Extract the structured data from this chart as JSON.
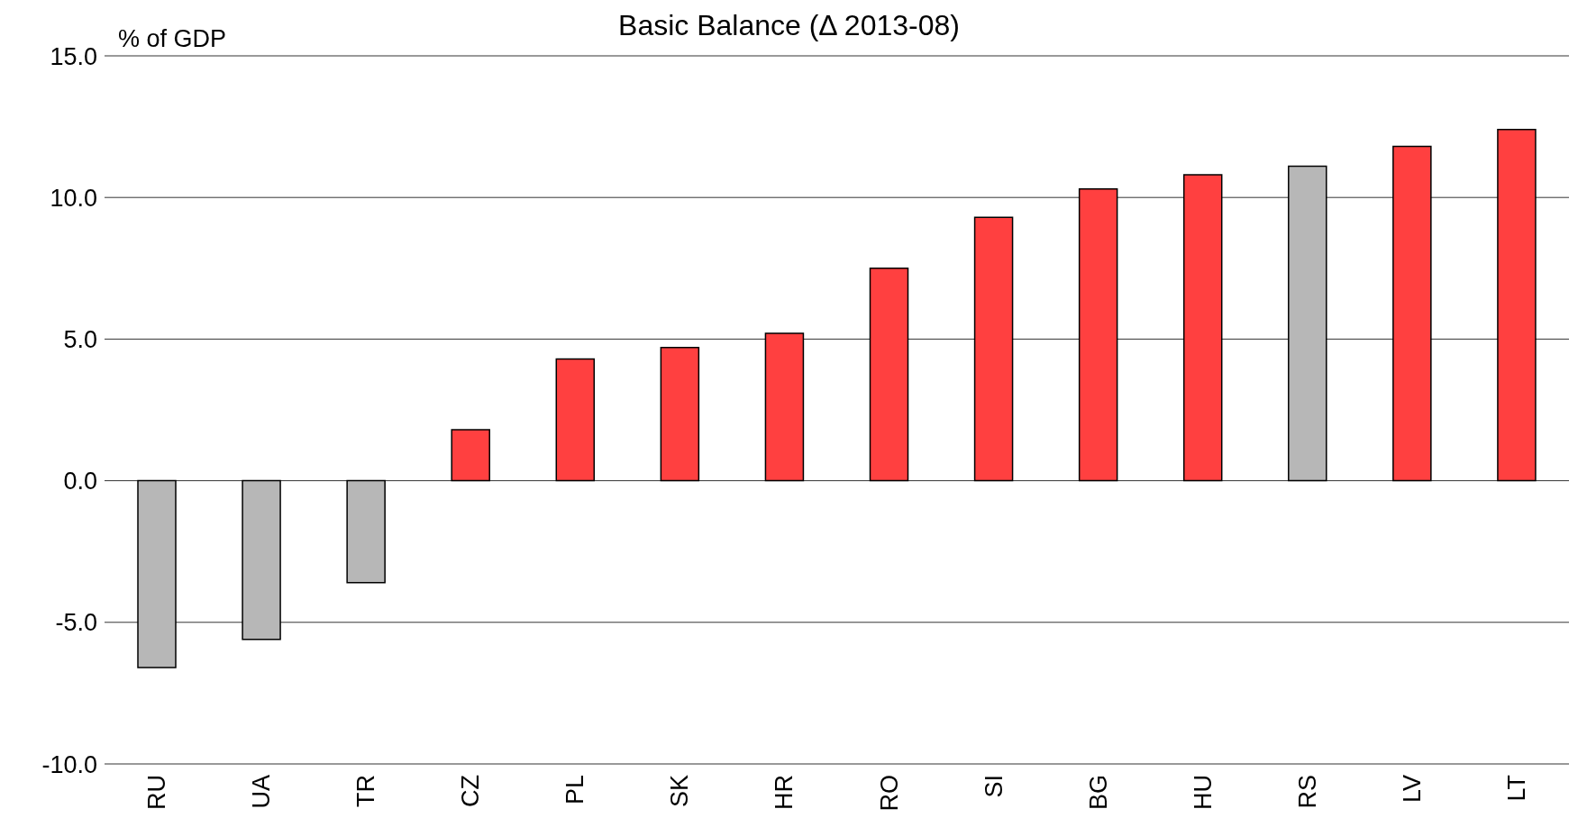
{
  "chart_data": {
    "type": "bar",
    "title": "Basic Balance (Δ 2013-08)",
    "ylabel": "% of GDP",
    "categories": [
      "RU",
      "UA",
      "TR",
      "CZ",
      "PL",
      "SK",
      "HR",
      "RO",
      "SI",
      "BG",
      "HU",
      "RS",
      "LV",
      "LT"
    ],
    "values": [
      -6.6,
      -5.6,
      -3.6,
      1.8,
      4.3,
      4.7,
      5.2,
      7.5,
      9.3,
      10.3,
      10.8,
      11.1,
      11.8,
      12.4
    ],
    "colors": [
      "#b7b7b7",
      "#b7b7b7",
      "#b7b7b7",
      "#ff4040",
      "#ff4040",
      "#ff4040",
      "#ff4040",
      "#ff4040",
      "#ff4040",
      "#ff4040",
      "#ff4040",
      "#b7b7b7",
      "#ff4040",
      "#ff4040"
    ],
    "ylim": [
      -10,
      15
    ],
    "yticks": [
      {
        "value": -10,
        "label": "-10.0"
      },
      {
        "value": -5,
        "label": "-5.0"
      },
      {
        "value": 0,
        "label": "0.0"
      },
      {
        "value": 5,
        "label": "5.0"
      },
      {
        "value": 10,
        "label": "10.0"
      },
      {
        "value": 15,
        "label": "15.0"
      }
    ],
    "grid": "y",
    "legend": false
  }
}
